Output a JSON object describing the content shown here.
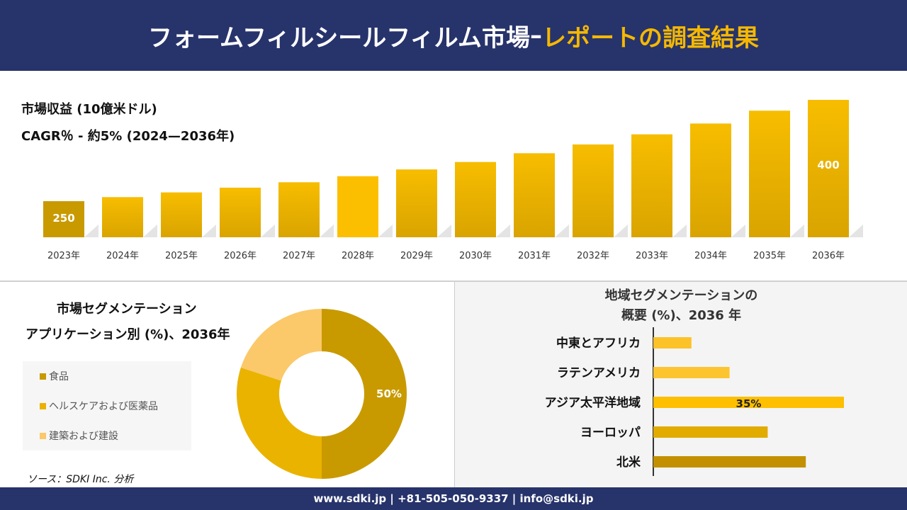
{
  "header": {
    "title_main": "フォームフィルシールフィルム市場",
    "title_sep": "–",
    "title_highlight": "レポートの調査結果"
  },
  "revenue": {
    "title": "市場収益 (10億米ドル)",
    "cagr": "CAGR％ - 約5% (2024—2036年)"
  },
  "colors": {
    "navy": "#27336b",
    "accent": "#f5b800",
    "dark_gold": "#c89a00",
    "gold": "#f0b400",
    "light_gold": "#fbc96a"
  },
  "chart_data": [
    {
      "type": "bar",
      "categories": [
        "2023年",
        "2024年",
        "2025年",
        "2026年",
        "2027年",
        "2028年",
        "2029年",
        "2030年",
        "2031年",
        "2032年",
        "2033年",
        "2034年",
        "2035年",
        "2036年"
      ],
      "values": [
        250,
        256,
        263,
        270,
        278,
        287,
        297,
        308,
        321,
        334,
        349,
        365,
        384,
        400
      ],
      "data_labels": {
        "2023年": "250",
        "2036年": "400"
      },
      "ylim": [
        196,
        400
      ],
      "grid": false
    },
    {
      "type": "pie",
      "title": "市場セグメンテーション",
      "subtitle": "アプリケーション別 (%)、2036年",
      "donut": true,
      "labels": [
        "食品",
        "ヘルスケアおよび医薬品",
        "建築および建設"
      ],
      "values": [
        50,
        30,
        20
      ],
      "colors": [
        "#c89a00",
        "#eab300",
        "#fbc96a"
      ],
      "data_labels": [
        "50%",
        "",
        ""
      ],
      "legend": "left"
    },
    {
      "type": "bar",
      "orientation": "horizontal",
      "title_line1": "地域セグメンテーションの",
      "title_line2": "概要 (%)、2036 年",
      "categories": [
        "中東とアフリカ",
        "ラテンアメリカ",
        "アジア太平洋地域",
        "ヨーロッパ",
        "北米"
      ],
      "values": [
        7,
        14,
        35,
        21,
        28
      ],
      "colors": [
        "#fcc22a",
        "#fcc530",
        "#fdbf00",
        "#e2ab00",
        "#c29000"
      ],
      "data_labels": [
        "",
        "",
        "35%",
        "",
        ""
      ]
    }
  ],
  "source": "ソース：SDKI Inc. 分析",
  "footer": "www.sdki.jp | +81-505-050-9337 | info@sdki.jp"
}
